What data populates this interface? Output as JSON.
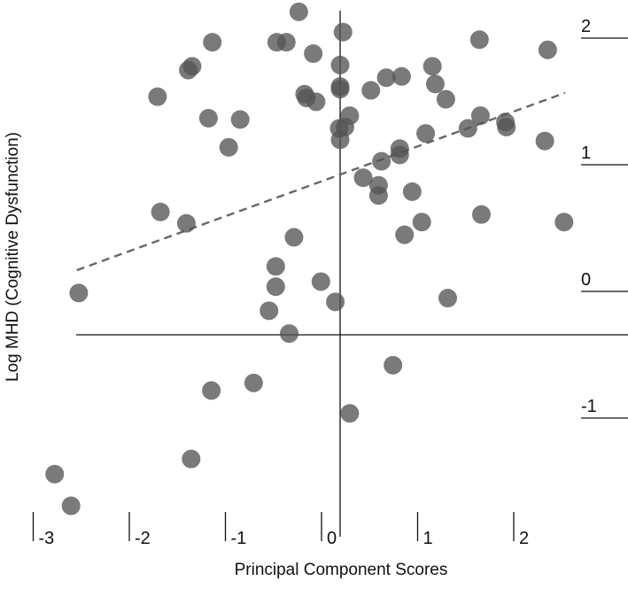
{
  "chart_data": {
    "type": "scatter",
    "title": "",
    "xlabel": "Principal Component Scores",
    "ylabel": "Log MHD (Cognitive Dysfunction)",
    "xlim": [
      -3.0,
      2.8
    ],
    "ylim": [
      -1.5,
      2.6
    ],
    "x_ticks": [
      {
        "value": -3,
        "label": "-3"
      },
      {
        "value": -2,
        "label": "-2"
      },
      {
        "value": -1,
        "label": "-1"
      },
      {
        "value": 0,
        "label": "0"
      },
      {
        "value": 1,
        "label": "1"
      },
      {
        "value": 2,
        "label": "2"
      }
    ],
    "y_ticks": [
      {
        "value": 2,
        "label": "2"
      },
      {
        "value": 1,
        "label": "1"
      },
      {
        "value": 0,
        "label": "0"
      },
      {
        "value": -1,
        "label": "-1"
      }
    ],
    "reference_lines": {
      "x": 0,
      "y": 0
    },
    "trend_line": {
      "style": "dashed",
      "color": "#666666",
      "points": [
        [
          -2.74,
          0.51
        ],
        [
          2.34,
          1.91
        ]
      ]
    },
    "point_color": "#555555",
    "points": [
      {
        "x": -0.43,
        "y": 2.55
      },
      {
        "x": 0.03,
        "y": 2.39
      },
      {
        "x": 1.45,
        "y": 2.33
      },
      {
        "x": 2.16,
        "y": 2.25
      },
      {
        "x": -1.33,
        "y": 2.31
      },
      {
        "x": -0.66,
        "y": 2.31
      },
      {
        "x": -0.56,
        "y": 2.31
      },
      {
        "x": -0.28,
        "y": 2.22
      },
      {
        "x": -1.54,
        "y": 2.12
      },
      {
        "x": -1.58,
        "y": 2.09
      },
      {
        "x": 0.0,
        "y": 2.13
      },
      {
        "x": 0.96,
        "y": 2.12
      },
      {
        "x": 0.48,
        "y": 2.03
      },
      {
        "x": 0.64,
        "y": 2.04
      },
      {
        "x": 0.99,
        "y": 1.98
      },
      {
        "x": 0.32,
        "y": 1.93
      },
      {
        "x": 0.0,
        "y": 1.96
      },
      {
        "x": 0.0,
        "y": 1.94
      },
      {
        "x": -1.9,
        "y": 1.88
      },
      {
        "x": -0.37,
        "y": 1.9
      },
      {
        "x": -0.35,
        "y": 1.87
      },
      {
        "x": -0.25,
        "y": 1.84
      },
      {
        "x": 1.1,
        "y": 1.86
      },
      {
        "x": -1.37,
        "y": 1.71
      },
      {
        "x": -1.04,
        "y": 1.7
      },
      {
        "x": 0.1,
        "y": 1.73
      },
      {
        "x": 0.05,
        "y": 1.64
      },
      {
        "x": -0.01,
        "y": 1.63
      },
      {
        "x": 1.46,
        "y": 1.73
      },
      {
        "x": 1.72,
        "y": 1.68
      },
      {
        "x": 1.73,
        "y": 1.64
      },
      {
        "x": 1.33,
        "y": 1.63
      },
      {
        "x": 0.89,
        "y": 1.59
      },
      {
        "x": 0.0,
        "y": 1.54
      },
      {
        "x": 2.13,
        "y": 1.53
      },
      {
        "x": -1.16,
        "y": 1.48
      },
      {
        "x": 0.62,
        "y": 1.47
      },
      {
        "x": 0.62,
        "y": 1.42
      },
      {
        "x": 0.43,
        "y": 1.37
      },
      {
        "x": 0.24,
        "y": 1.24
      },
      {
        "x": 0.4,
        "y": 1.18
      },
      {
        "x": 0.4,
        "y": 1.1
      },
      {
        "x": 0.75,
        "y": 1.13
      },
      {
        "x": -1.87,
        "y": 0.97
      },
      {
        "x": -1.6,
        "y": 0.88
      },
      {
        "x": 1.47,
        "y": 0.95
      },
      {
        "x": 2.33,
        "y": 0.89
      },
      {
        "x": 0.85,
        "y": 0.89
      },
      {
        "x": 0.67,
        "y": 0.79
      },
      {
        "x": -0.48,
        "y": 0.77
      },
      {
        "x": -0.67,
        "y": 0.54
      },
      {
        "x": -2.72,
        "y": 0.33
      },
      {
        "x": -0.67,
        "y": 0.38
      },
      {
        "x": -0.2,
        "y": 0.42
      },
      {
        "x": -0.74,
        "y": 0.19
      },
      {
        "x": 1.12,
        "y": 0.29
      },
      {
        "x": -0.05,
        "y": 0.26
      },
      {
        "x": -0.53,
        "y": 0.01
      },
      {
        "x": 0.55,
        "y": -0.24
      },
      {
        "x": -0.9,
        "y": -0.38
      },
      {
        "x": -1.34,
        "y": -0.44
      },
      {
        "x": 0.1,
        "y": -0.62
      },
      {
        "x": -1.55,
        "y": -0.98
      },
      {
        "x": -2.97,
        "y": -1.1
      },
      {
        "x": -2.8,
        "y": -1.35
      }
    ]
  }
}
